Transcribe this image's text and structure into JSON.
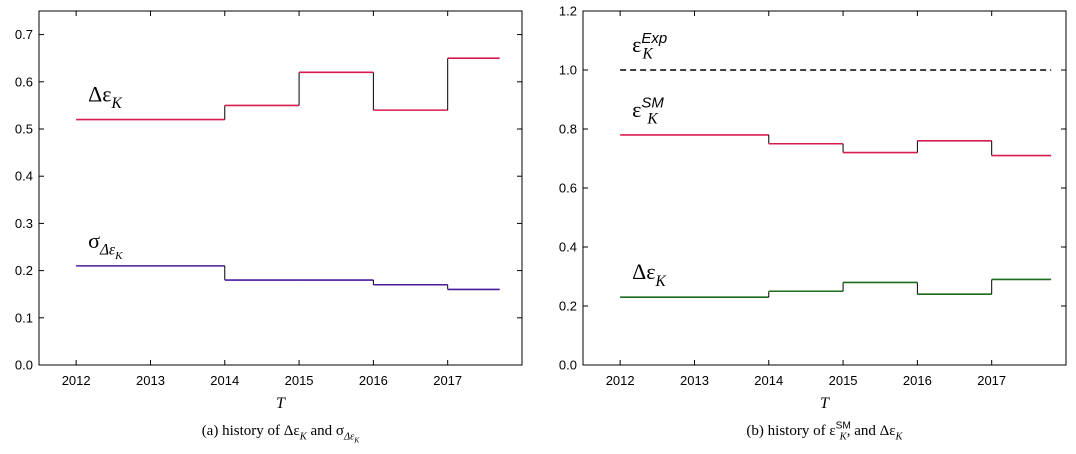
{
  "chart_data": [
    {
      "type": "step",
      "xlabel": "T",
      "caption": [
        {
          "text": "(a)  history of Δε",
          "sub": "K"
        },
        {
          "text": " and σ",
          "sub": "Δε",
          "subsub": "K"
        }
      ],
      "xlim": [
        2011.5,
        2018
      ],
      "xticks": [
        2012,
        2013,
        2014,
        2015,
        2016,
        2017
      ],
      "ylim": [
        0,
        0.75
      ],
      "yticks": [
        {
          "value": 0,
          "label": "0.0"
        },
        0.1,
        0.2,
        0.3,
        0.4,
        0.5,
        0.6,
        0.7
      ],
      "series": [
        {
          "color": "#d81b4f",
          "x": [
            2012,
            2014,
            2015,
            2016,
            2017,
            2017.7
          ],
          "values": [
            0.52,
            0.55,
            0.62,
            0.54,
            0.65,
            0.65
          ],
          "label": {
            "text": "Δε",
            "sub": "K"
          }
        },
        {
          "color": "#4b1a9c",
          "x": [
            2012,
            2014,
            2015,
            2016,
            2017,
            2017.7
          ],
          "values": [
            0.21,
            0.18,
            0.18,
            0.17,
            0.16,
            0.16
          ],
          "label": {
            "text": "σ",
            "sub": "Δε",
            "subsub": "K"
          }
        }
      ]
    },
    {
      "type": "step",
      "xlabel": "T",
      "caption": [
        {
          "text": "(b)  history of ε",
          "sup": "SM",
          "sub": "K"
        },
        {
          "text": ", and Δε",
          "sub": "K"
        }
      ],
      "xlim": [
        2011.5,
        2018
      ],
      "xticks": [
        2012,
        2013,
        2014,
        2015,
        2016,
        2017
      ],
      "ylim": [
        0,
        1.2
      ],
      "yticks": [
        {
          "value": 0,
          "label": "0.0"
        },
        0.2,
        0.4,
        0.6,
        0.8,
        {
          "value": 1,
          "label": "1.0"
        },
        1.2
      ],
      "series": [
        {
          "color": "#000000",
          "dashed": true,
          "x": [
            2012,
            2017.8
          ],
          "values": [
            1.0,
            1.0
          ],
          "label": {
            "text": "ε",
            "sup": "Exp",
            "sub": "K"
          }
        },
        {
          "color": "#d81b4f",
          "x": [
            2012,
            2014,
            2015,
            2016,
            2017,
            2017.8
          ],
          "values": [
            0.78,
            0.75,
            0.72,
            0.76,
            0.71,
            0.71
          ],
          "label": {
            "text": "ε",
            "sup": "SM",
            "sub": "K"
          }
        },
        {
          "color": "#1d6b1d",
          "x": [
            2012,
            2014,
            2015,
            2016,
            2017,
            2017.8
          ],
          "values": [
            0.23,
            0.25,
            0.28,
            0.24,
            0.29,
            0.29
          ],
          "label": {
            "text": "Δε",
            "sub": "K"
          }
        }
      ]
    }
  ]
}
